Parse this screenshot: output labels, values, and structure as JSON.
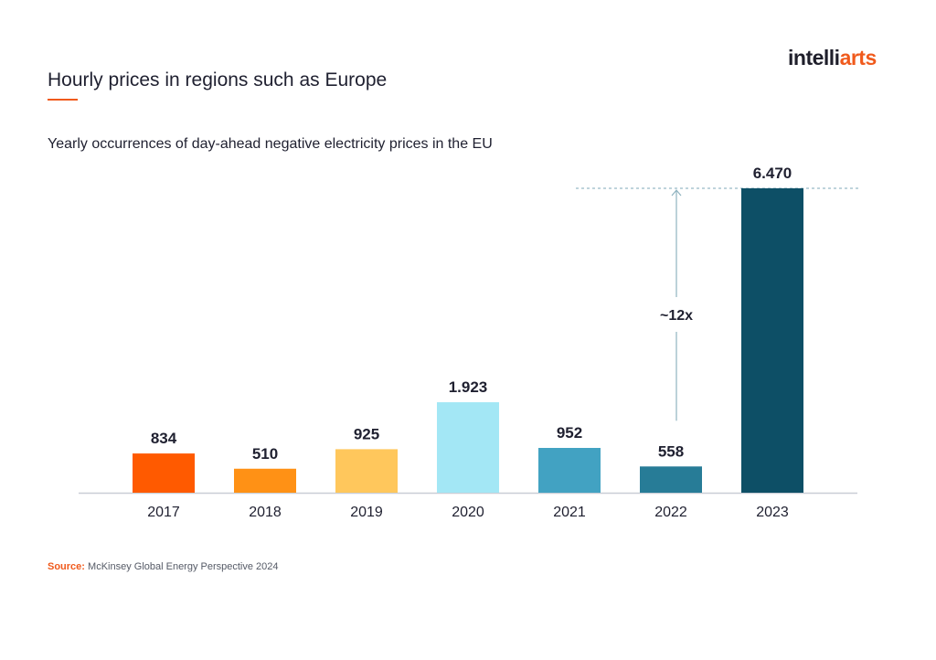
{
  "brand": {
    "logo_part1": "intelli",
    "logo_part2": "arts"
  },
  "header": {
    "title": "Hourly prices in regions such as Europe",
    "subtitle": "Yearly occurrences of day-ahead negative electricity prices in the EU"
  },
  "chart_data": {
    "type": "bar",
    "title": "Yearly occurrences of day-ahead negative electricity prices in the EU",
    "categories": [
      "2017",
      "2018",
      "2019",
      "2020",
      "2021",
      "2022",
      "2023"
    ],
    "values": [
      834,
      510,
      925,
      1923,
      952,
      558,
      6470
    ],
    "value_labels": [
      "834",
      "510",
      "925",
      "1.923",
      "952",
      "558",
      "6.470"
    ],
    "colors": [
      "#ff5a00",
      "#ff9115",
      "#ffc75c",
      "#a3e7f5",
      "#42a2c2",
      "#277c97",
      "#0d4f66"
    ],
    "xlabel": "",
    "ylabel": "",
    "ylim": [
      0,
      6470
    ],
    "grid": false,
    "annotation": {
      "label": "~12x",
      "from_category": "2022",
      "reference_value": 6470
    }
  },
  "footer": {
    "source_label": "Source:",
    "source_text": " McKinsey Global Energy Perspective 2024"
  }
}
